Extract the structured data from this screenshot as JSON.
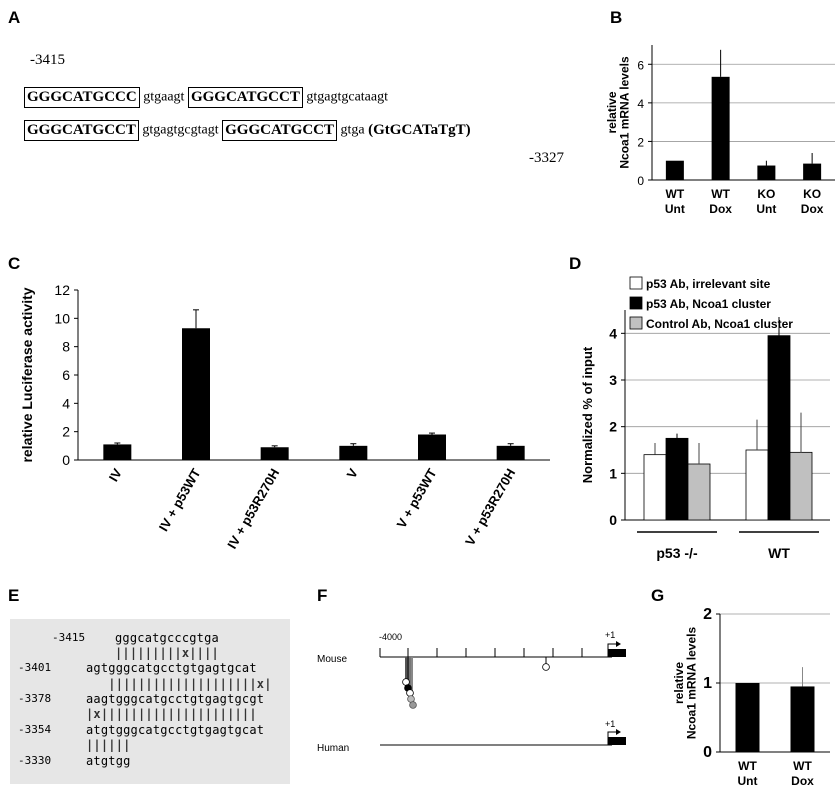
{
  "panel_letters": [
    "A",
    "B",
    "C",
    "D",
    "E",
    "F",
    "G"
  ],
  "panelA": {
    "start": "-3415",
    "end": "-3327",
    "line1": [
      {
        "t": "GGGCATGCCC",
        "box": true
      },
      {
        "t": " gtgaagt ",
        "box": false
      },
      {
        "t": "GGGCATGCCT",
        "box": true
      },
      {
        "t": " gtgagtgcataagt",
        "box": false
      }
    ],
    "line2": [
      {
        "t": "GGGCATGCCT",
        "box": true
      },
      {
        "t": " gtgagtgcgtagt ",
        "box": false
      },
      {
        "t": "GGGCATGCCT",
        "box": true
      },
      {
        "t": " gtga ",
        "box": false
      }
    ],
    "line2_tail": "(GtGCATaTgT)"
  },
  "panelE": {
    "rows": [
      {
        "pos": "-3415",
        "seq": "gggcatgcccgtga"
      },
      {
        "pos": "",
        "seq": "|||||||||x||||"
      },
      {
        "pos": "-3401",
        "seq": "agtgggcatgcctgtgagtgcat"
      },
      {
        "pos": "",
        "seq": "   ||||||||||||||||||||x|"
      },
      {
        "pos": "-3378",
        "seq": "aagtgggcatgcctgtgagtgcgt"
      },
      {
        "pos": "",
        "seq": "|x|||||||||||||||||||||"
      },
      {
        "pos": "-3354",
        "seq": "atgtgggcatgcctgtgagtgcat"
      },
      {
        "pos": "",
        "seq": "||||||"
      },
      {
        "pos": "-3330",
        "seq": "atgtgg"
      }
    ]
  },
  "panelF": {
    "species": [
      "Mouse",
      "Human"
    ],
    "left_label": "-4000",
    "tss_label": "+1"
  },
  "chart_data": [
    {
      "panel": "B",
      "type": "bar",
      "ylabel": "relative\nNcoa1 mRNA levels",
      "categories": [
        "WT\nUnt",
        "WT\nDox",
        "KO\nUnt",
        "KO\nDox"
      ],
      "values": [
        1.0,
        5.35,
        0.75,
        0.85
      ],
      "errors": [
        0.0,
        1.4,
        0.25,
        0.55
      ],
      "ylim": [
        0,
        7
      ],
      "yticks": [
        0,
        2,
        4,
        6
      ],
      "grid": true
    },
    {
      "panel": "C",
      "type": "bar",
      "ylabel": "relative Luciferase activity",
      "categories": [
        "IV",
        "IV + p53WT",
        "IV + p53R270H",
        "V",
        "V + p53WT",
        "V + p53R270H"
      ],
      "values": [
        1.1,
        9.3,
        0.9,
        1.0,
        1.8,
        1.0
      ],
      "errors": [
        0.1,
        1.3,
        0.1,
        0.15,
        0.1,
        0.15
      ],
      "ylim": [
        0,
        12
      ],
      "yticks": [
        0,
        2,
        4,
        6,
        8,
        10,
        12
      ],
      "grid": false
    },
    {
      "panel": "D",
      "type": "bar",
      "ylabel": "Normalized % of input",
      "groups": [
        "p53 -/-",
        "WT"
      ],
      "series": [
        {
          "name": "p53 Ab, irrelevant site",
          "color": "#ffffff",
          "values": [
            1.4,
            1.5
          ],
          "errors": [
            0.25,
            0.65
          ]
        },
        {
          "name": "p53 Ab, Ncoa1 cluster",
          "color": "#000000",
          "values": [
            1.75,
            3.95
          ],
          "errors": [
            0.1,
            0.4
          ]
        },
        {
          "name": "Control Ab, Ncoa1 cluster",
          "color": "#c0c0c0",
          "values": [
            1.2,
            1.45
          ],
          "errors": [
            0.45,
            0.85
          ]
        }
      ],
      "ylim": [
        0,
        4.5
      ],
      "yticks": [
        0,
        1,
        2,
        3,
        4
      ],
      "grid": true,
      "legend": "top"
    },
    {
      "panel": "G",
      "type": "bar",
      "ylabel": "relative\nNcoa1 mRNA levels",
      "categories": [
        "WT\nUnt",
        "WT\nDox"
      ],
      "values": [
        1.0,
        0.95
      ],
      "errors": [
        0.0,
        0.28
      ],
      "ylim": [
        0,
        2
      ],
      "yticks": [
        0,
        1,
        2
      ],
      "grid": true
    }
  ]
}
